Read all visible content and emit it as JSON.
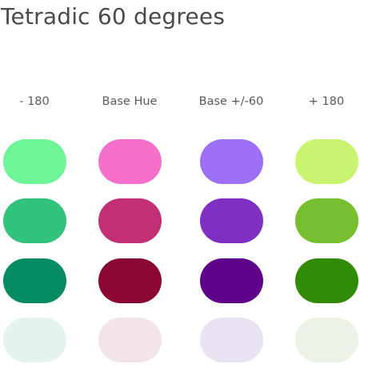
{
  "title": "Tetradic 60 degrees",
  "columns": [
    {
      "label": "- 180",
      "key": "minus180"
    },
    {
      "label": "Base Hue",
      "key": "base"
    },
    {
      "label": "Base +/-60",
      "key": "base60"
    },
    {
      "label": "+ 180",
      "key": "plus180"
    }
  ],
  "swatches": {
    "minus180": [
      "#6ef598",
      "#31c27c",
      "#058c62",
      "#e5f3ed"
    ],
    "base": [
      "#f470ca",
      "#c13077",
      "#8a0634",
      "#f3e3ea"
    ],
    "base60": [
      "#9e70f5",
      "#7d30c2",
      "#5f048a",
      "#e9e3f3"
    ],
    "plus180": [
      "#c9f46f",
      "#77be30",
      "#308b06",
      "#ebf2e6"
    ]
  }
}
